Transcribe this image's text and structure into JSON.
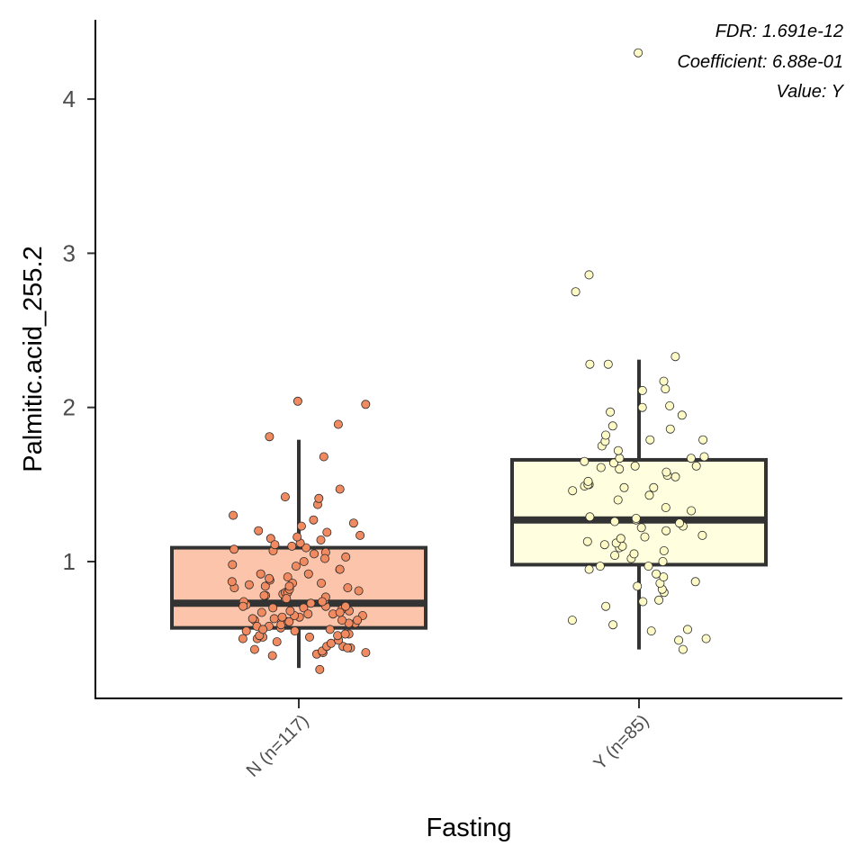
{
  "chart_data": {
    "type": "box",
    "xlabel": "Fasting",
    "ylabel": "Palmitic.acid_255.2",
    "ylim": [
      0.12,
      4.5
    ],
    "yticks": [
      1,
      2,
      3,
      4
    ],
    "grid": false,
    "legend": "none",
    "annotations": [
      "FDR: 1.691e-12",
      "Coefficient: 6.88e-01",
      "Value: Y"
    ],
    "groups": [
      {
        "category": "N (n=117)",
        "fill": "#fcc5ab",
        "point_fill": "#f08a60",
        "box": {
          "whisker_low": 0.31,
          "q1": 0.57,
          "median": 0.73,
          "q3": 1.09,
          "whisker_high": 1.79
        },
        "points": [
          0.3,
          0.39,
          0.4,
          0.41,
          0.41,
          0.42,
          0.43,
          0.44,
          0.45,
          0.45,
          0.47,
          0.48,
          0.49,
          0.5,
          0.51,
          0.51,
          0.52,
          0.52,
          0.53,
          0.53,
          0.55,
          0.55,
          0.56,
          0.57,
          0.58,
          0.59,
          0.6,
          0.6,
          0.61,
          0.61,
          0.62,
          0.62,
          0.63,
          0.63,
          0.64,
          0.64,
          0.65,
          0.65,
          0.66,
          0.67,
          0.68,
          0.68,
          0.69,
          0.7,
          0.7,
          0.71,
          0.71,
          0.72,
          0.73,
          0.74,
          0.75,
          0.76,
          0.77,
          0.78,
          0.79,
          0.8,
          0.8,
          0.81,
          0.82,
          0.83,
          0.84,
          0.85,
          0.86,
          0.87,
          0.88,
          0.89,
          0.9,
          0.92,
          0.95,
          0.97,
          1.0,
          1.03,
          1.05,
          1.06,
          1.08,
          1.09,
          1.1,
          1.12,
          1.14,
          1.15,
          1.16,
          1.17,
          1.2,
          1.23,
          1.25,
          1.27,
          1.3,
          1.37,
          1.41,
          1.42,
          1.47,
          1.68,
          1.81,
          1.89,
          2.02,
          2.04,
          0.58,
          0.66,
          0.74,
          0.83,
          0.92,
          1.02,
          0.5,
          0.62,
          0.71,
          0.78,
          0.86,
          0.95,
          1.07,
          0.44,
          0.56,
          0.67,
          0.76,
          0.84,
          0.98,
          1.11,
          1.19
        ]
      },
      {
        "category": "Y (n=85)",
        "fill": "#ffffe0",
        "point_fill": "#fdfac6",
        "box": {
          "whisker_low": 0.43,
          "q1": 0.98,
          "median": 1.27,
          "q3": 1.66,
          "whisker_high": 2.31
        },
        "points": [
          0.43,
          0.49,
          0.5,
          0.55,
          0.56,
          0.59,
          0.62,
          0.71,
          0.74,
          0.75,
          0.8,
          0.82,
          0.84,
          0.86,
          0.87,
          0.9,
          0.95,
          0.97,
          0.97,
          1.0,
          1.02,
          1.04,
          1.07,
          1.09,
          1.1,
          1.11,
          1.12,
          1.13,
          1.16,
          1.17,
          1.2,
          1.22,
          1.23,
          1.25,
          1.26,
          1.27,
          1.28,
          1.29,
          1.33,
          1.4,
          1.46,
          1.48,
          1.48,
          1.49,
          1.5,
          1.5,
          1.52,
          1.55,
          1.56,
          1.58,
          1.6,
          1.61,
          1.62,
          1.62,
          1.64,
          1.65,
          1.67,
          1.67,
          1.68,
          1.75,
          1.78,
          1.79,
          1.79,
          1.82,
          1.86,
          1.88,
          1.95,
          1.97,
          2.0,
          2.01,
          2.11,
          2.12,
          2.17,
          2.28,
          2.28,
          2.33,
          2.75,
          2.86,
          4.3,
          1.05,
          1.15,
          1.35,
          0.92,
          1.43,
          1.72
        ]
      }
    ]
  }
}
